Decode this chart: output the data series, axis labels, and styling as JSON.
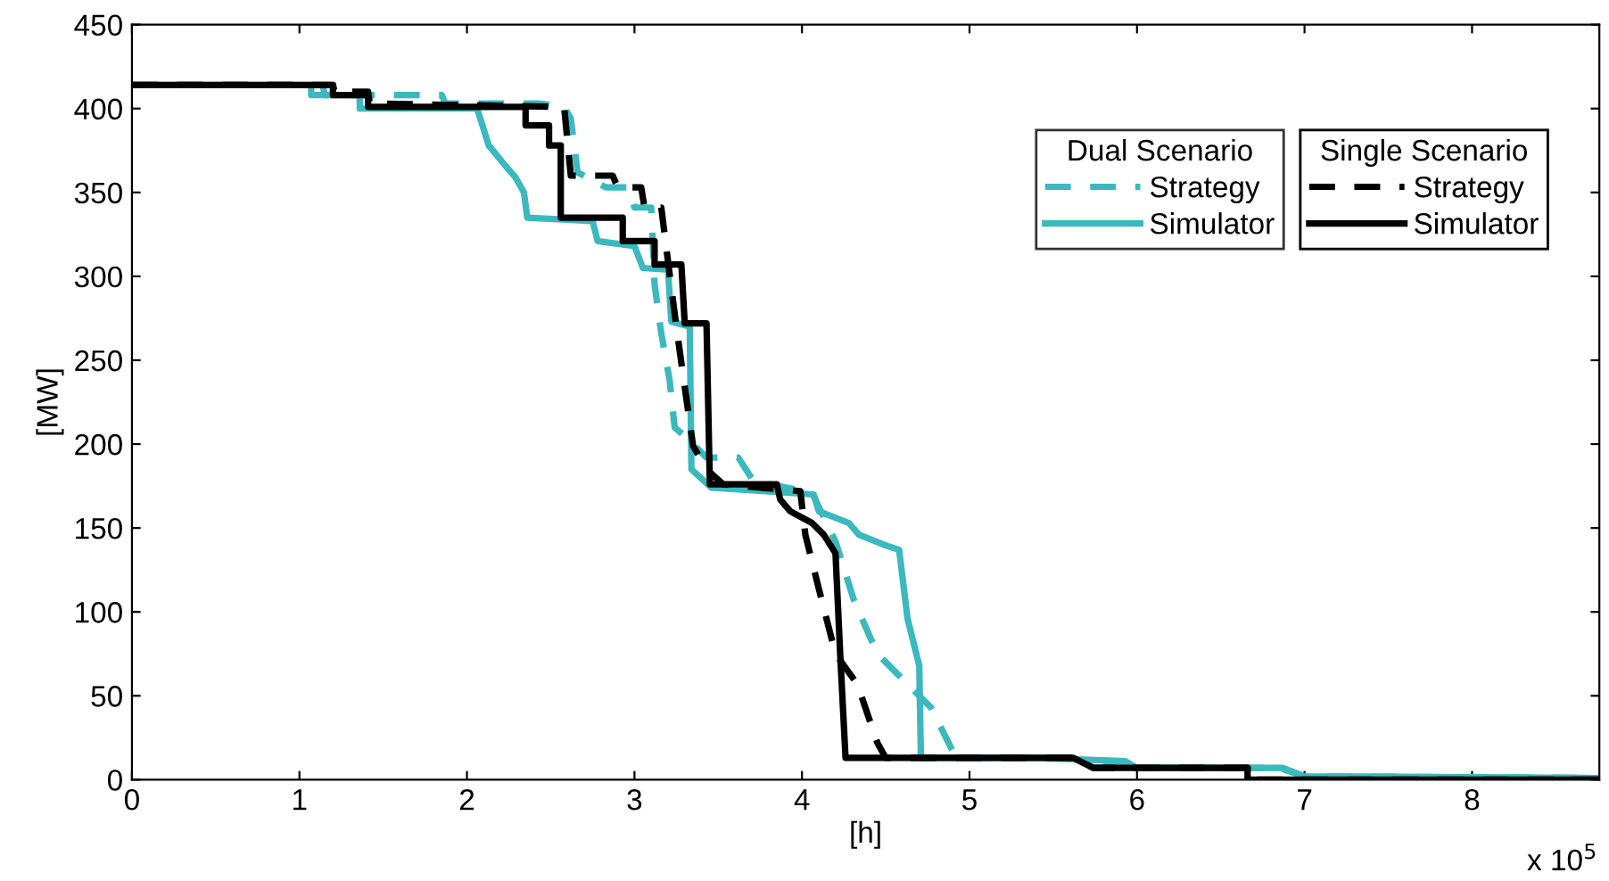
{
  "chart_data": {
    "type": "line",
    "xlabel": "[h]",
    "ylabel": "[MW]",
    "legend_title": [
      "Dual Scenario",
      "Single Scenario"
    ],
    "legend": "top right",
    "grid": false,
    "marker": "none",
    "xlim": [
      0,
      8.76
    ],
    "xticks": [
      0,
      1,
      2,
      3,
      4,
      5,
      6,
      7,
      8
    ],
    "ylim": [
      0,
      450
    ],
    "yticks": [
      0,
      50,
      100,
      150,
      200,
      250,
      300,
      350,
      400,
      450
    ],
    "annotations": [
      "x 10$^{5}$"
    ],
    "series": [
      {
        "name": "Strategy",
        "color": "#3cb8bf",
        "line_style": "dashed",
        "x": [
          0,
          1.14,
          1.15,
          1.85,
          1.87,
          2.43,
          2.58,
          2.62,
          2.66,
          2.83,
          2.96,
          3.0,
          3.1,
          3.12,
          3.16,
          3.21,
          3.24,
          3.33,
          3.43,
          3.62,
          3.71,
          4.06,
          4.2,
          4.31,
          4.45,
          4.63,
          4.77,
          4.91,
          5.0,
          5.55,
          5.9,
          6.0,
          6.85,
          7.0,
          8.76
        ],
        "values": [
          414,
          414,
          408,
          408,
          403,
          403,
          401,
          394,
          362,
          353,
          353,
          341,
          341,
          295,
          266,
          238,
          210,
          202,
          192,
          192,
          178,
          171,
          142,
          107,
          75,
          57,
          43,
          15,
          13,
          13,
          9,
          7,
          7,
          2,
          1
        ]
      },
      {
        "name": "Simulator",
        "color": "#3cb8bf",
        "line_style": "solid",
        "x": [
          0,
          1.07,
          1.07,
          1.36,
          1.36,
          2.06,
          2.08,
          2.13,
          2.22,
          2.29,
          2.34,
          2.36,
          2.75,
          2.78,
          3.0,
          3.05,
          3.2,
          3.22,
          3.33,
          3.34,
          3.46,
          4.07,
          4.1,
          4.28,
          4.34,
          4.49,
          4.58,
          4.63,
          4.7,
          4.71,
          5.4,
          5.93,
          6.0,
          6.87,
          7.0,
          8.76
        ],
        "values": [
          414,
          414,
          408,
          408,
          400,
          400,
          394,
          378,
          367,
          359,
          350,
          335,
          333,
          321,
          318,
          305,
          304,
          273,
          270,
          185,
          174,
          170,
          160,
          153,
          146,
          140,
          137,
          96,
          68,
          13,
          13,
          11,
          7,
          7,
          2,
          1
        ]
      },
      {
        "name": "Strategy",
        "color": "#000000",
        "line_style": "dashed",
        "x": [
          0,
          1.2,
          1.21,
          1.41,
          1.42,
          2.58,
          2.62,
          2.87,
          2.9,
          3.04,
          3.06,
          3.16,
          3.2,
          3.25,
          3.3,
          3.35,
          3.43,
          3.53,
          3.99,
          4.02,
          4.1,
          4.2,
          4.33,
          4.45,
          4.5,
          5.62,
          5.74,
          6.66,
          6.66,
          8.76
        ],
        "values": [
          414,
          414,
          410,
          410,
          403,
          401,
          360,
          360,
          353,
          353,
          341,
          341,
          309,
          270,
          234,
          199,
          185,
          176,
          172,
          146,
          114,
          75,
          57,
          22,
          13,
          13,
          7,
          7,
          0,
          0
        ]
      },
      {
        "name": "Simulator",
        "color": "#000000",
        "line_style": "solid",
        "x": [
          0,
          1.2,
          1.2,
          1.41,
          1.41,
          2.35,
          2.35,
          2.49,
          2.49,
          2.56,
          2.56,
          2.93,
          2.93,
          3.12,
          3.12,
          3.28,
          3.3,
          3.43,
          3.45,
          3.85,
          3.87,
          3.93,
          4.06,
          4.13,
          4.2,
          4.23,
          4.26,
          5.62,
          5.74,
          6.66,
          6.66,
          8.76
        ],
        "values": [
          414,
          414,
          408,
          408,
          401,
          401,
          390,
          390,
          378,
          378,
          335,
          335,
          321,
          321,
          307,
          307,
          272,
          272,
          176,
          176,
          167,
          160,
          153,
          146,
          135,
          71,
          13,
          13,
          7,
          7,
          0,
          0
        ]
      }
    ]
  }
}
